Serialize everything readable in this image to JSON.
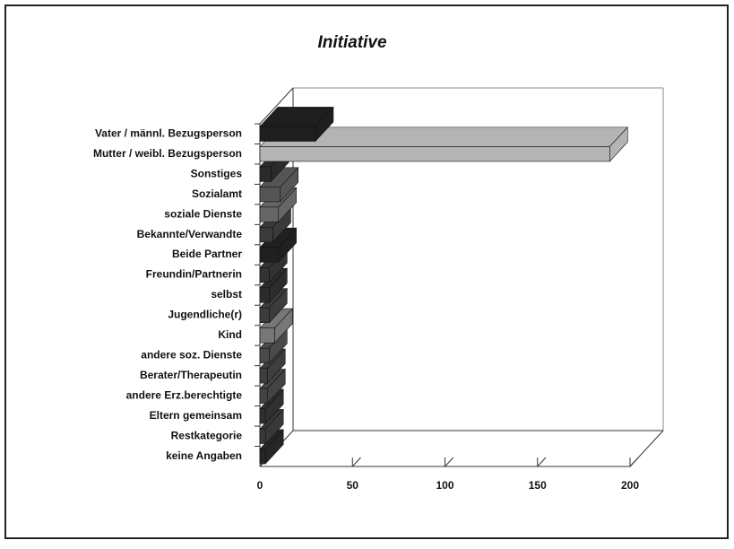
{
  "chart_data": {
    "type": "bar3d",
    "title": "Initiative",
    "categories": [
      "Vater / männl. Bezugsperson",
      "Mutter / weibl. Bezugsperson",
      "Sonstiges",
      "Sozialamt",
      "soziale Dienste",
      "Bekannte/Verwandte",
      "Beide Partner",
      "Freundin/Partnerin",
      "selbst",
      "Jugendliche(r)",
      "Kind",
      "andere soz. Dienste",
      "Berater/Therapeutin",
      "andere Erz.berechtigte",
      "Eltern gemeinsam",
      "Restkategorie",
      "keine Angaben"
    ],
    "values": [
      30,
      189,
      6,
      11,
      10,
      7,
      10,
      5,
      5,
      5,
      8,
      5,
      4,
      4,
      3,
      3,
      3
    ],
    "colors": [
      "#1e1e1e",
      "#b4b4b4",
      "#2a2a2a",
      "#555555",
      "#666666",
      "#3a3a3a",
      "#202020",
      "#333333",
      "#2c2c2c",
      "#3c3c3c",
      "#777777",
      "#4a4a4a",
      "#3e3e3e",
      "#444444",
      "#303030",
      "#383838",
      "#262626"
    ],
    "xlim": [
      0,
      200
    ],
    "xticks": [
      0,
      50,
      100,
      150,
      200
    ]
  }
}
